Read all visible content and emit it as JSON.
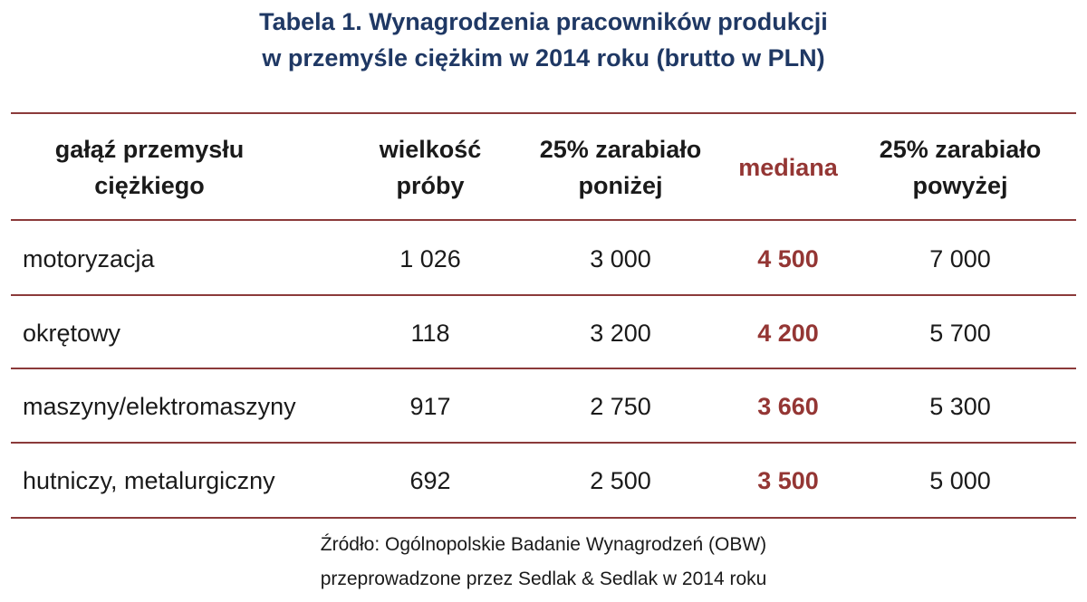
{
  "title": {
    "line1": "Tabela 1. Wynagrodzenia pracowników produkcji",
    "line2": "w przemyśle ciężkim w 2014 roku (brutto w PLN)"
  },
  "header": {
    "col1": [
      "gałąź przemysłu",
      "ciężkiego"
    ],
    "col2": [
      "wielkość",
      "próby"
    ],
    "col3": [
      "25% zarabiało",
      "poniżej"
    ],
    "col4": "mediana",
    "col5": [
      "25% zarabiało",
      "powyżej"
    ]
  },
  "rows": [
    {
      "branch": "motoryzacja",
      "sample": "1 026",
      "low": "3 000",
      "median": "4 500",
      "high": "7 000"
    },
    {
      "branch": "okrętowy",
      "sample": "118",
      "low": "3 200",
      "median": "4 200",
      "high": "5 700"
    },
    {
      "branch": "maszyny/elektromaszyny",
      "sample": "917",
      "low": "2 750",
      "median": "3 660",
      "high": "5 300"
    },
    {
      "branch": "hutniczy, metalurgiczny",
      "sample": "692",
      "low": "2 500",
      "median": "3 500",
      "high": "5 000"
    }
  ],
  "source": {
    "line1": "Źródło: Ogólnopolskie Badanie Wynagrodzeń (OBW)",
    "line2": "przeprowadzone przez Sedlak & Sedlak w 2014 roku"
  },
  "colors": {
    "title": "#1f3864",
    "rule": "#8b3a3a",
    "median": "#943634"
  }
}
